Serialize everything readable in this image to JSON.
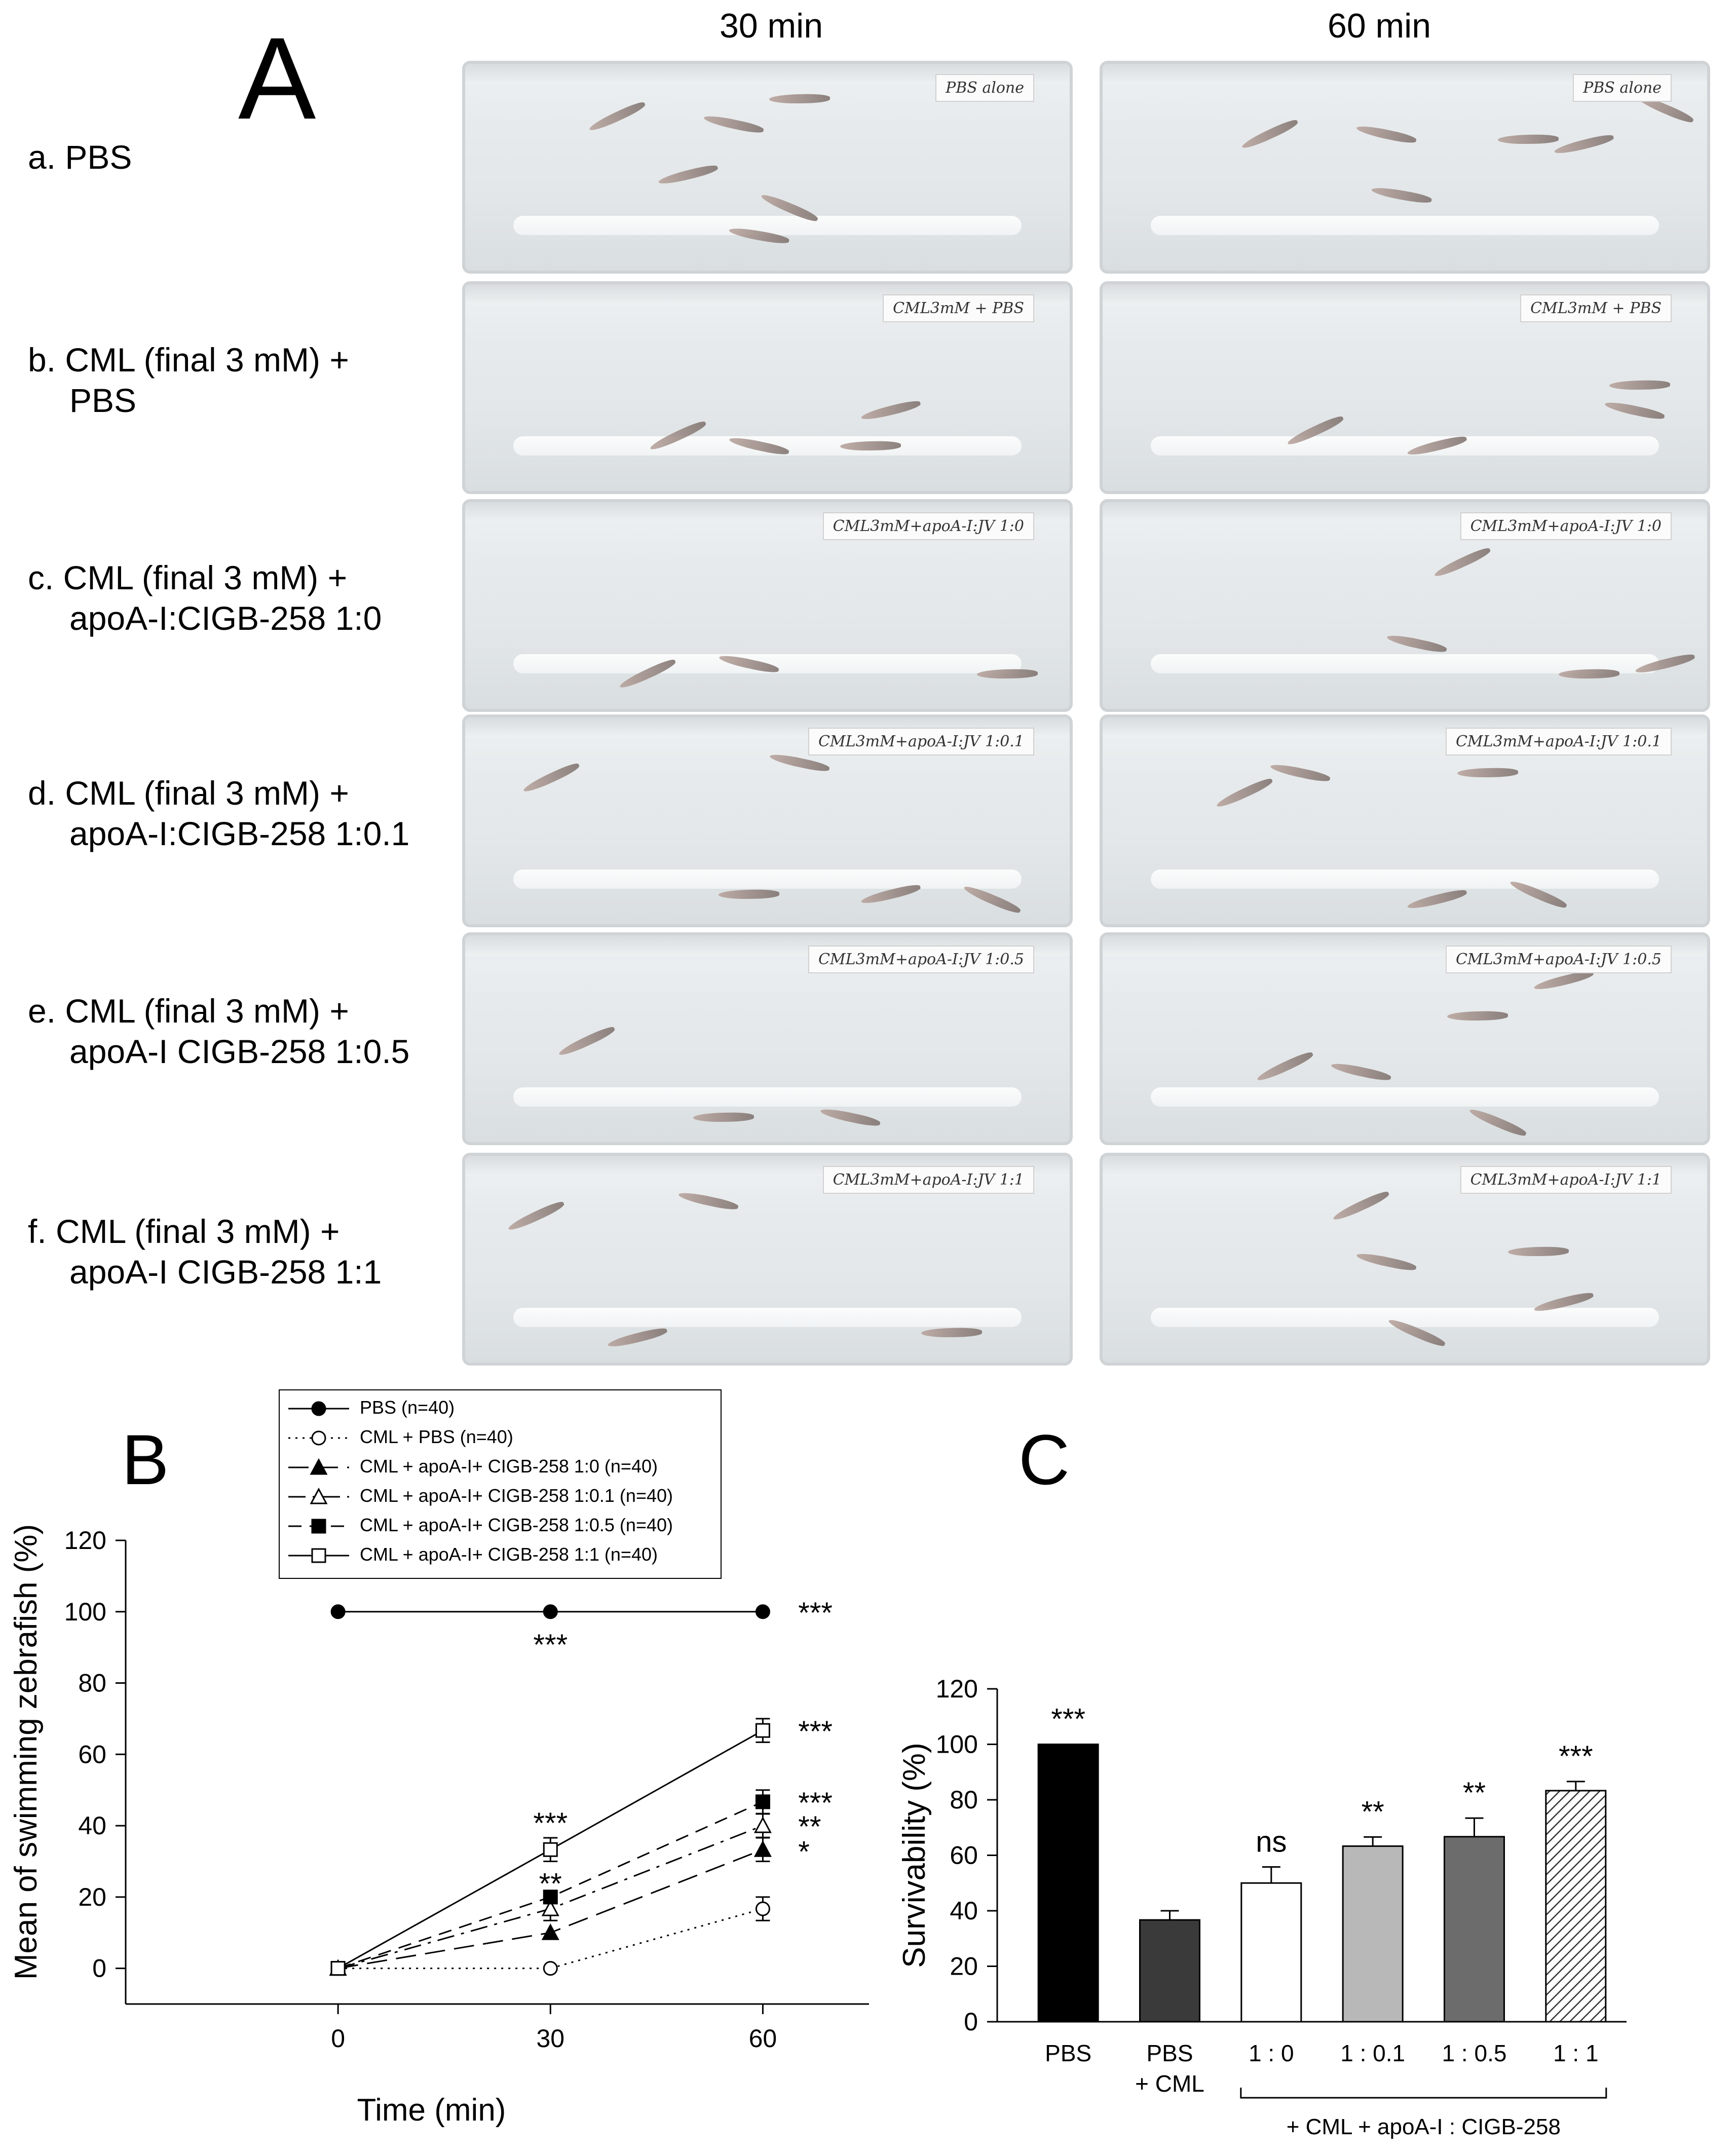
{
  "panel_a": {
    "letter": "A",
    "col_headers": [
      "30 min",
      "60 min"
    ],
    "rows": [
      {
        "label": [
          "a. PBS"
        ],
        "tag_30": "PBS alone",
        "tag_60": "PBS alone"
      },
      {
        "label": [
          "b. CML (final 3 mM) +",
          "PBS"
        ],
        "tag_30": "CML3mM + PBS",
        "tag_60": "CML3mM + PBS"
      },
      {
        "label": [
          "c. CML (final 3 mM)  +",
          "apoA-I:CIGB-258  1:0"
        ],
        "tag_30": "CML3mM+apoA-I:JV 1:0",
        "tag_60": "CML3mM+apoA-I:JV 1:0"
      },
      {
        "label": [
          "d. CML (final 3 mM)  +",
          "apoA-I:CIGB-258  1:0.1"
        ],
        "tag_30": "CML3mM+apoA-I:JV 1:0.1",
        "tag_60": "CML3mM+apoA-I:JV 1:0.1"
      },
      {
        "label": [
          "e. CML (final 3 mM)  +",
          "apoA-I CIGB-258  1:0.5"
        ],
        "tag_30": "CML3mM+apoA-I:JV 1:0.5",
        "tag_60": "CML3mM+apoA-I:JV 1:0.5"
      },
      {
        "label": [
          "f. CML (final 3 mM) +",
          "apoA-I CIGB-258  1:1"
        ],
        "tag_30": "CML3mM+apoA-I:JV 1:1",
        "tag_60": "CML3mM+apoA-I:JV 1:1"
      }
    ]
  },
  "chart_data": [
    {
      "panel": "B",
      "type": "line",
      "xlabel": "Time (min)",
      "ylabel": "Mean of swimming zebrafish (%)",
      "x": [
        0,
        30,
        60
      ],
      "xlim": [
        -30,
        75
      ],
      "ylim": [
        -10,
        120
      ],
      "yticks": [
        0,
        20,
        40,
        60,
        80,
        100,
        120
      ],
      "xticks": [
        0,
        30,
        60
      ],
      "series": [
        {
          "name": "PBS (n=40)",
          "values": [
            100,
            100,
            100
          ],
          "err": [
            0,
            0,
            0
          ],
          "marker": "circle-filled",
          "dash": "solid"
        },
        {
          "name": "CML + PBS (n=40)",
          "values": [
            0,
            0,
            16.7
          ],
          "err": [
            0,
            0,
            3.3
          ],
          "marker": "circle-open",
          "dash": "dotted"
        },
        {
          "name": "CML + apoA-I+ CIGB-258 1:0 (n=40)",
          "values": [
            0,
            10,
            33.3
          ],
          "err": [
            0,
            0,
            3.3
          ],
          "marker": "triangle-filled",
          "dash": "longdash"
        },
        {
          "name": "CML + apoA-I+ CIGB-258 1:0.1 (n=40)",
          "values": [
            0,
            16.7,
            40
          ],
          "err": [
            0,
            3.3,
            3.3
          ],
          "marker": "triangle-open",
          "dash": "dashdot"
        },
        {
          "name": "CML + apoA-I+ CIGB-258 1:0.5 (n=40)",
          "values": [
            0,
            20,
            46.7
          ],
          "err": [
            0,
            0,
            3.3
          ],
          "marker": "square-filled",
          "dash": "dash"
        },
        {
          "name": "CML + apoA-I+ CIGB-258 1:1 (n=40)",
          "values": [
            0,
            33.3,
            66.7
          ],
          "err": [
            0,
            3.3,
            3.3
          ],
          "marker": "square-open",
          "dash": "solid"
        }
      ],
      "annotations": [
        {
          "x": 30,
          "y": 91,
          "text": "***"
        },
        {
          "x": 30,
          "y": 41,
          "text": "***"
        },
        {
          "x": 30,
          "y": 24,
          "text": "**"
        },
        {
          "x": 65,
          "y": 100,
          "text": "***"
        },
        {
          "x": 65,
          "y": 66.7,
          "text": "***"
        },
        {
          "x": 65,
          "y": 46.7,
          "text": "***"
        },
        {
          "x": 65,
          "y": 40,
          "text": "**"
        },
        {
          "x": 65,
          "y": 33,
          "text": "*"
        }
      ]
    },
    {
      "panel": "C",
      "type": "bar",
      "ylabel": "Survivability (%)",
      "ylim": [
        0,
        120
      ],
      "yticks": [
        0,
        20,
        40,
        60,
        80,
        100,
        120
      ],
      "categories": [
        [
          "PBS"
        ],
        [
          "PBS",
          "+ CML"
        ],
        [
          "1 : 0"
        ],
        [
          "1 : 0.1"
        ],
        [
          "1 : 0.5"
        ],
        [
          "1 : 1"
        ]
      ],
      "values": [
        100,
        36.7,
        50,
        63.3,
        66.7,
        83.3
      ],
      "err": [
        0,
        3.3,
        5.8,
        3.3,
        6.7,
        3.3
      ],
      "colors": [
        "#000000",
        "#3a3a3a",
        "#ffffff",
        "#b8b8b8",
        "#6c6c6c",
        "hatch"
      ],
      "sig": [
        "***",
        "",
        "ns",
        "**",
        "**",
        "***"
      ],
      "bracket_label": "+ CML + apoA-I : CIGB-258"
    }
  ],
  "legend_b": [
    "PBS (n=40)",
    "CML + PBS (n=40)",
    "CML + apoA-I+ CIGB-258 1:0 (n=40)",
    "CML + apoA-I+ CIGB-258 1:0.1 (n=40)",
    "CML + apoA-I+ CIGB-258 1:0.5 (n=40)",
    "CML + apoA-I+ CIGB-258 1:1 (n=40)"
  ],
  "panel_b_letter": "B",
  "panel_c_letter": "C"
}
